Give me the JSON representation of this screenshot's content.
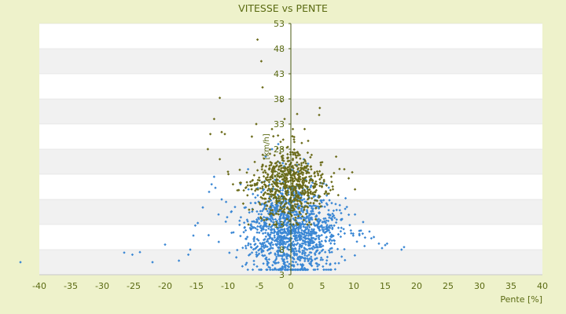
{
  "chart_data": {
    "type": "scatter",
    "title": "VITESSE vs PENTE",
    "xlabel": "Pente [%]",
    "ylabel": "[km/h]",
    "xlim": [
      -40,
      40
    ],
    "ylim": [
      3,
      53
    ],
    "x_ticks": [
      -40,
      -35,
      -30,
      -25,
      -20,
      -15,
      -10,
      -5,
      0,
      5,
      10,
      15,
      20,
      25,
      30,
      35,
      40
    ],
    "y_ticks": [
      3,
      8,
      13,
      18,
      23,
      28,
      33,
      38,
      43,
      48,
      53
    ],
    "grid": "horizontal bands",
    "legend": "none",
    "series": [
      {
        "color": "#3a87d4",
        "marker": "diamond",
        "points": [
          [
            -43.0,
            5.5
          ],
          [
            -26.5,
            7.4
          ],
          [
            -25.2,
            7.0
          ],
          [
            -24.0,
            7.5
          ],
          [
            -22.0,
            5.5
          ],
          [
            -20.0,
            9.0
          ],
          [
            -17.8,
            5.8
          ],
          [
            -16.3,
            7.0
          ],
          [
            -16.0,
            8.0
          ],
          [
            -15.5,
            10.8
          ],
          [
            -15.2,
            12.8
          ],
          [
            -14.8,
            13.3
          ],
          [
            -14.0,
            16.4
          ],
          [
            -13.0,
            19.5
          ],
          [
            -12.6,
            21.0
          ],
          [
            -12.2,
            22.5
          ],
          [
            -12.0,
            20.3
          ],
          [
            -11.5,
            15.0
          ],
          [
            -11.0,
            18.0
          ],
          [
            -10.3,
            17.5
          ],
          [
            -9.5,
            15.5
          ],
          [
            -8.0,
            21.0
          ],
          [
            -6.8,
            24.0
          ],
          [
            -4.0,
            26.5
          ],
          [
            -3.0,
            28.0
          ],
          [
            -2.0,
            29.0
          ],
          [
            10.2,
            15.0
          ],
          [
            11.8,
            10.4
          ],
          [
            12.5,
            11.6
          ],
          [
            13.2,
            10.5
          ],
          [
            14.0,
            9.2
          ],
          [
            14.5,
            8.3
          ],
          [
            15.0,
            8.9
          ],
          [
            15.3,
            9.2
          ],
          [
            17.6,
            8.0
          ],
          [
            18.0,
            8.5
          ]
        ],
        "cloud": {
          "x_mean": 0.3,
          "x_sd": 4.2,
          "y_mean": 11.8,
          "y_sd": 4.6,
          "y_min": 4.0,
          "y_max": 26.0,
          "count": 1350
        }
      },
      {
        "color": "#6b6b1a",
        "marker": "diamond",
        "points": [
          [
            -5.3,
            49.8
          ],
          [
            -4.7,
            45.5
          ],
          [
            -11.3,
            38.2
          ],
          [
            -4.5,
            40.3
          ],
          [
            -1.5,
            37.5
          ],
          [
            -12.2,
            34.0
          ],
          [
            -12.8,
            31.0
          ],
          [
            -11.0,
            31.4
          ],
          [
            -10.5,
            31.0
          ],
          [
            -1.0,
            34.0
          ],
          [
            1.0,
            35.0
          ],
          [
            4.6,
            36.2
          ],
          [
            4.5,
            34.8
          ],
          [
            -5.5,
            33.0
          ],
          [
            -3.0,
            32.0
          ],
          [
            -13.2,
            28.0
          ],
          [
            -11.3,
            26.0
          ],
          [
            -10.0,
            23.5
          ],
          [
            -9.2,
            21.0
          ],
          [
            -8.5,
            19.8
          ],
          [
            9.2,
            22.2
          ],
          [
            10.2,
            20.0
          ],
          [
            8.5,
            24.0
          ],
          [
            7.2,
            26.5
          ],
          [
            -6.2,
            30.5
          ]
        ],
        "cloud": {
          "x_mean": -0.4,
          "x_sd": 3.4,
          "y_mean": 21.0,
          "y_sd": 3.6,
          "y_min": 13.0,
          "y_max": 32.0,
          "count": 650
        }
      }
    ]
  }
}
